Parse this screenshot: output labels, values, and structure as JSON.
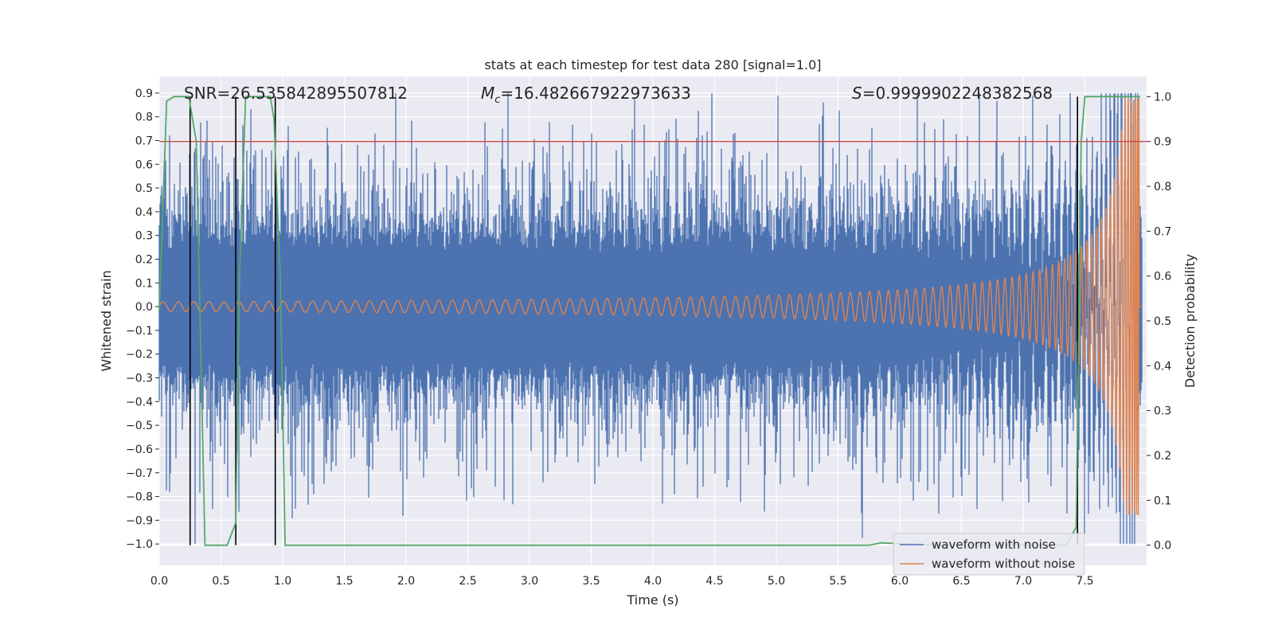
{
  "chart_data": {
    "type": "line",
    "title": "stats at each timestep for test data 280 [signal=1.0]",
    "xlabel": "Time (s)",
    "ylabel": "Whitened strain",
    "y2label": "Detection probability",
    "xlim": [
      0.0,
      8.0
    ],
    "ylim": [
      -1.09,
      0.97
    ],
    "y2lim": [
      -0.045,
      1.045
    ],
    "xticks": [
      "0.0",
      "0.5",
      "1.0",
      "1.5",
      "2.0",
      "2.5",
      "3.0",
      "3.5",
      "4.0",
      "4.5",
      "5.0",
      "5.5",
      "6.0",
      "6.5",
      "7.0",
      "7.5"
    ],
    "yticks": [
      "0.9",
      "0.8",
      "0.7",
      "0.6",
      "0.5",
      "0.4",
      "0.3",
      "0.2",
      "0.1",
      "0.0",
      "−0.1",
      "−0.2",
      "−0.3",
      "−0.4",
      "−0.5",
      "−0.6",
      "−0.7",
      "−0.8",
      "−0.9",
      "−1.0"
    ],
    "y2ticks": [
      "1.0",
      "0.9",
      "0.8",
      "0.7",
      "0.6",
      "0.5",
      "0.4",
      "0.3",
      "0.2",
      "0.1",
      "0.0"
    ],
    "grid": true,
    "annotations": {
      "snr": "SNR=26.535842895507812",
      "mc_symbol": "M",
      "mc_sub": "c",
      "mc_value": "=16.482667922973633",
      "s_symbol": "S",
      "s_value": "=0.9999902248382568"
    },
    "threshold": {
      "value": 0.9,
      "axis": "y2",
      "color": "#c44e52"
    },
    "detection_markers_s": [
      0.25,
      0.62,
      0.94,
      7.44
    ],
    "noise_envelope": {
      "typical_amplitude": 0.35,
      "max_peak": 0.9,
      "min_trough": -1.0
    },
    "signal_envelope": {
      "start_amplitude": 0.02,
      "peak_amplitude": 0.88,
      "merger_time_s": 7.94,
      "start_freq_hz": 8,
      "end_freq_hz": 60
    },
    "series": [
      {
        "name": "waveform with noise",
        "color": "#4c72b0"
      },
      {
        "name": "waveform without noise",
        "color": "#dd8452"
      },
      {
        "name": "detection probability",
        "color": "#55a868",
        "axis": "y2",
        "points": [
          [
            0.0,
            0.52
          ],
          [
            0.06,
            0.99
          ],
          [
            0.12,
            1.0
          ],
          [
            0.24,
            1.0
          ],
          [
            0.3,
            0.9
          ],
          [
            0.37,
            0.0
          ],
          [
            0.55,
            0.0
          ],
          [
            0.62,
            0.05
          ],
          [
            0.65,
            0.6
          ],
          [
            0.7,
            1.0
          ],
          [
            0.9,
            1.0
          ],
          [
            0.93,
            0.95
          ],
          [
            0.98,
            0.6
          ],
          [
            1.02,
            0.0
          ],
          [
            5.75,
            0.0
          ],
          [
            5.85,
            0.005
          ],
          [
            6.3,
            0.0
          ],
          [
            7.35,
            0.0
          ],
          [
            7.43,
            0.04
          ],
          [
            7.47,
            0.9
          ],
          [
            7.5,
            1.0
          ],
          [
            7.95,
            1.0
          ]
        ]
      }
    ],
    "legend": {
      "location": "lower-right",
      "entries": [
        "waveform with noise",
        "waveform without noise"
      ]
    }
  }
}
